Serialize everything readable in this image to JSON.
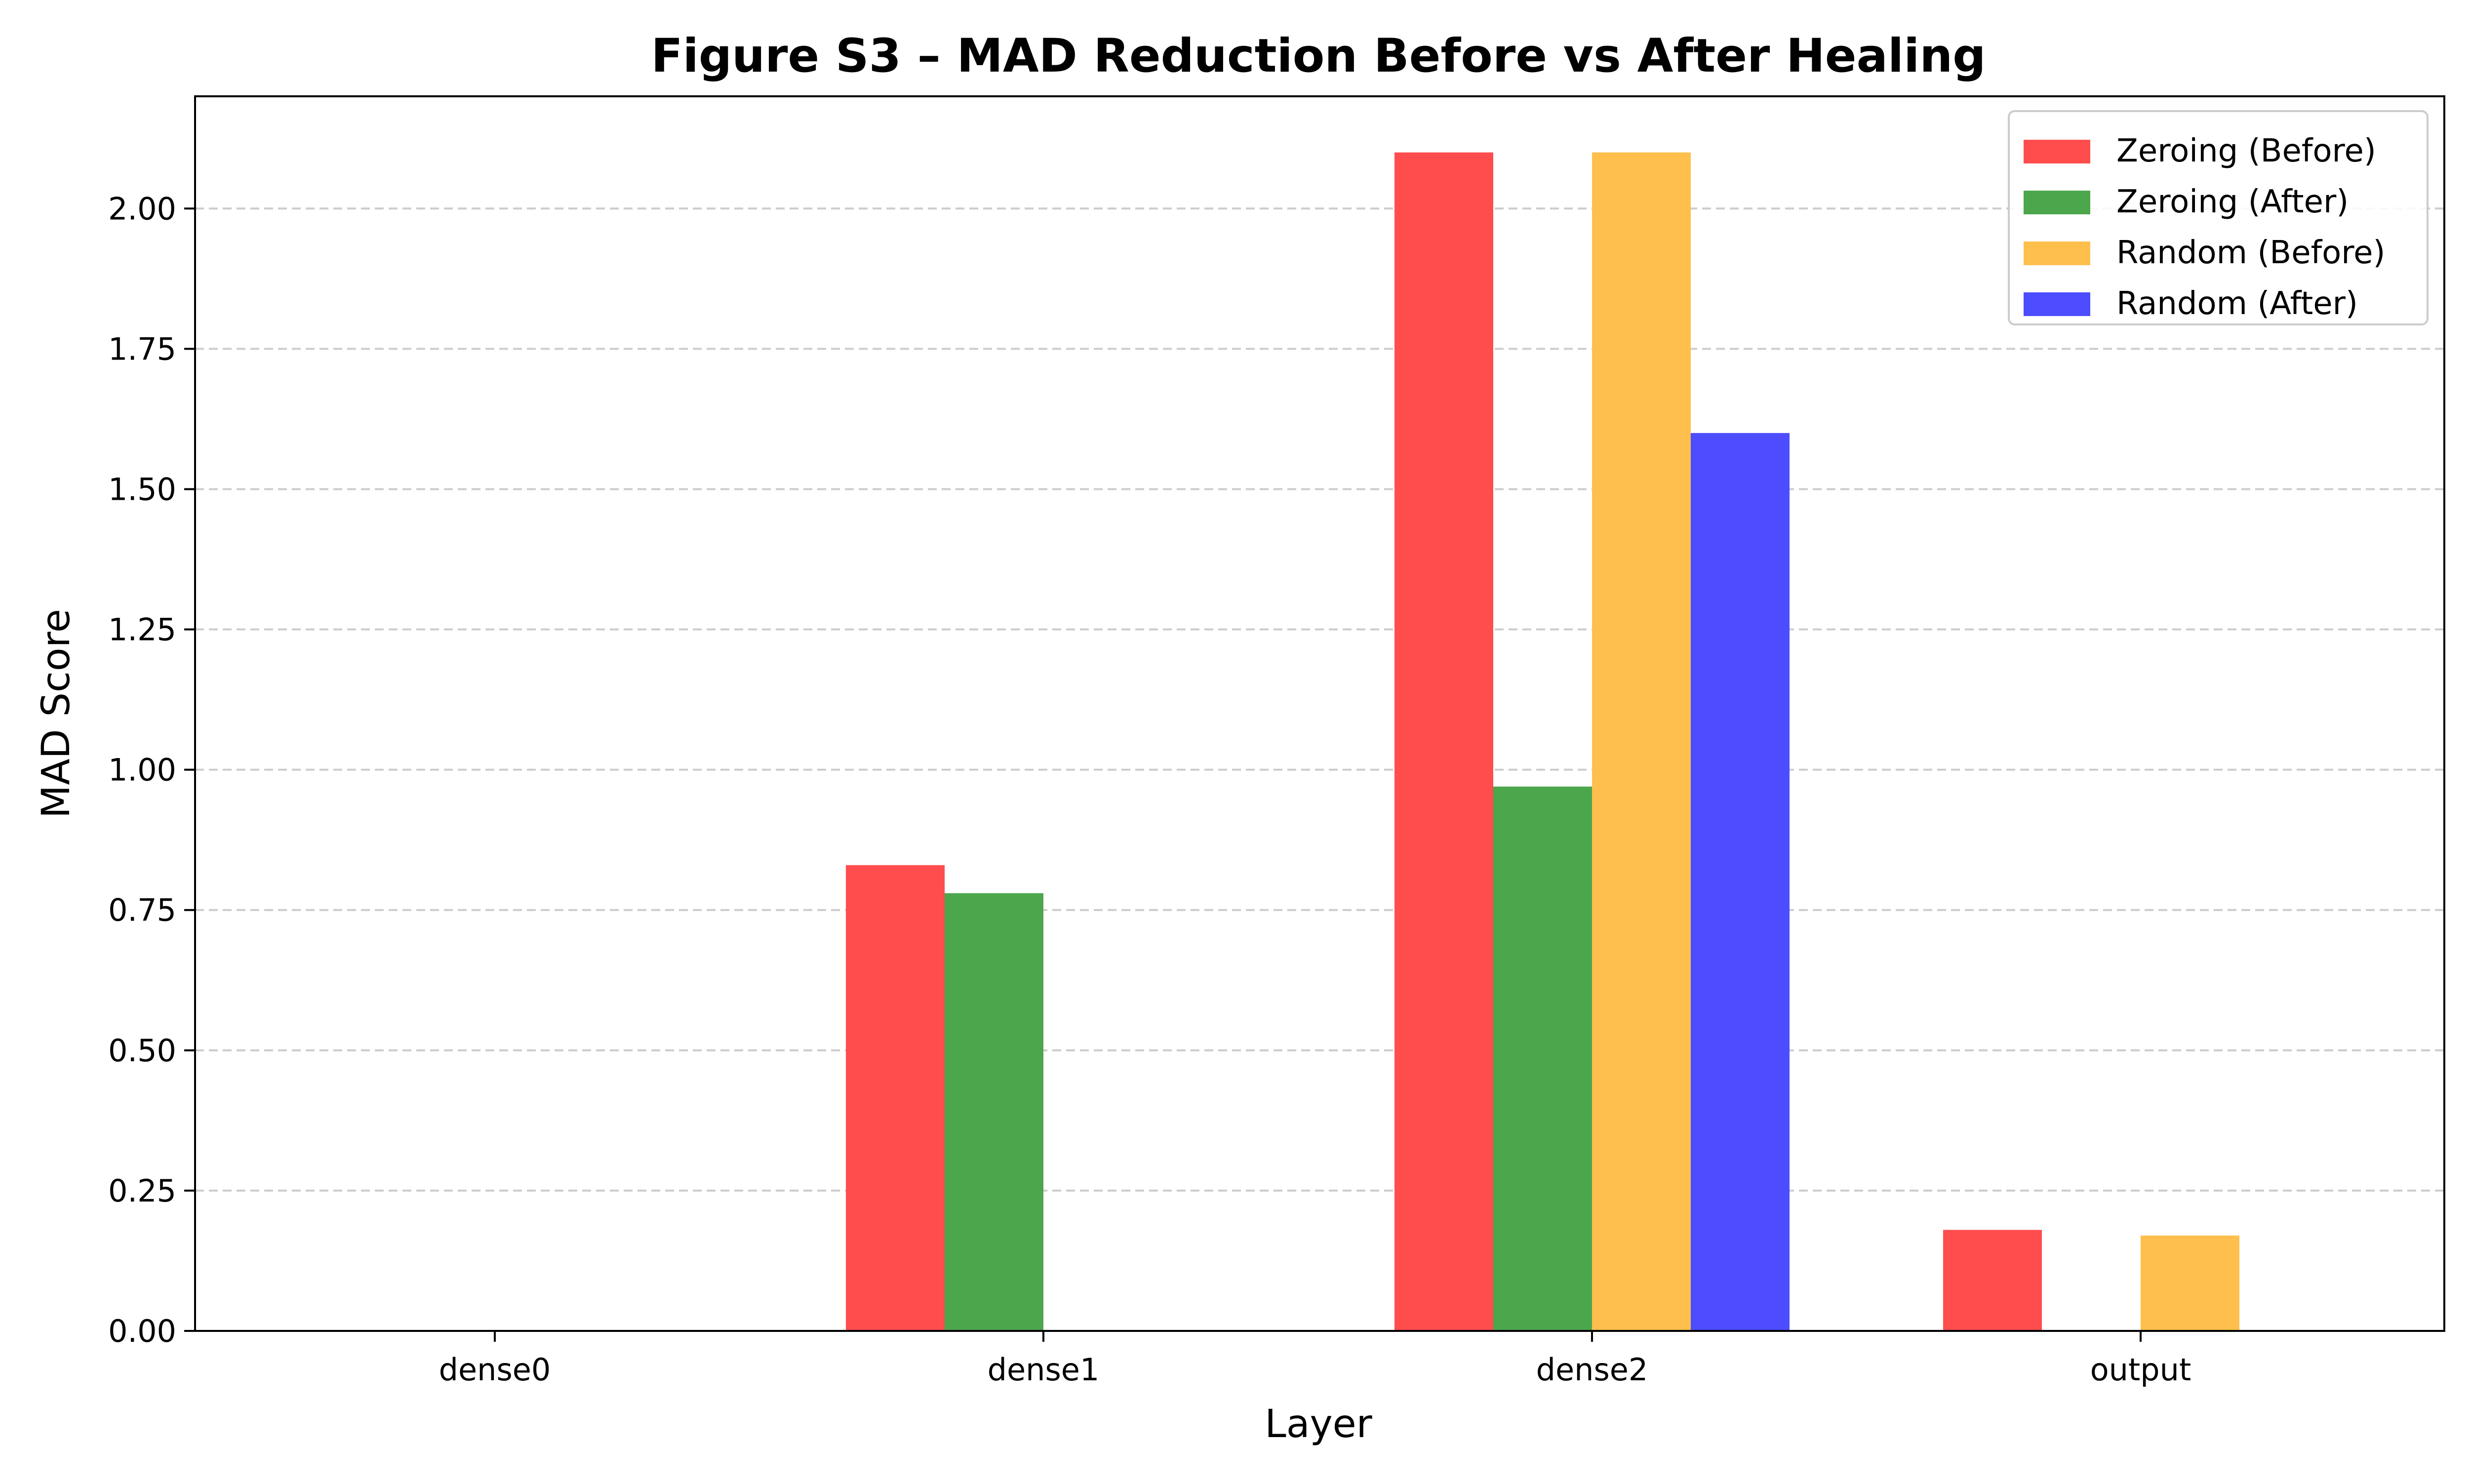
{
  "chart_data": {
    "type": "bar",
    "title": "Figure S3 – MAD Reduction Before vs After Healing",
    "xlabel": "Layer",
    "ylabel": "MAD Score",
    "categories": [
      "dense0",
      "dense1",
      "dense2",
      "output"
    ],
    "ylim": [
      0,
      2.2
    ],
    "yticks": [
      0.0,
      0.25,
      0.5,
      0.75,
      1.0,
      1.25,
      1.5,
      1.75,
      2.0
    ],
    "ytick_labels": [
      "0.00",
      "0.25",
      "0.50",
      "0.75",
      "1.00",
      "1.25",
      "1.50",
      "1.75",
      "2.00"
    ],
    "grid": "y-dashed",
    "legend_position": "top-right",
    "series": [
      {
        "name": "Zeroing (Before)",
        "color": "#ff4d4d",
        "values": [
          0,
          0.83,
          2.1,
          0.18
        ]
      },
      {
        "name": "Zeroing (After)",
        "color": "#4ca64c",
        "values": [
          0,
          0.78,
          0.97,
          0
        ]
      },
      {
        "name": "Random (Before)",
        "color": "#ffbf4d",
        "values": [
          0,
          0,
          2.1,
          0.17
        ]
      },
      {
        "name": "Random (After)",
        "color": "#4d4dff",
        "values": [
          0,
          0,
          1.6,
          0
        ]
      }
    ]
  }
}
